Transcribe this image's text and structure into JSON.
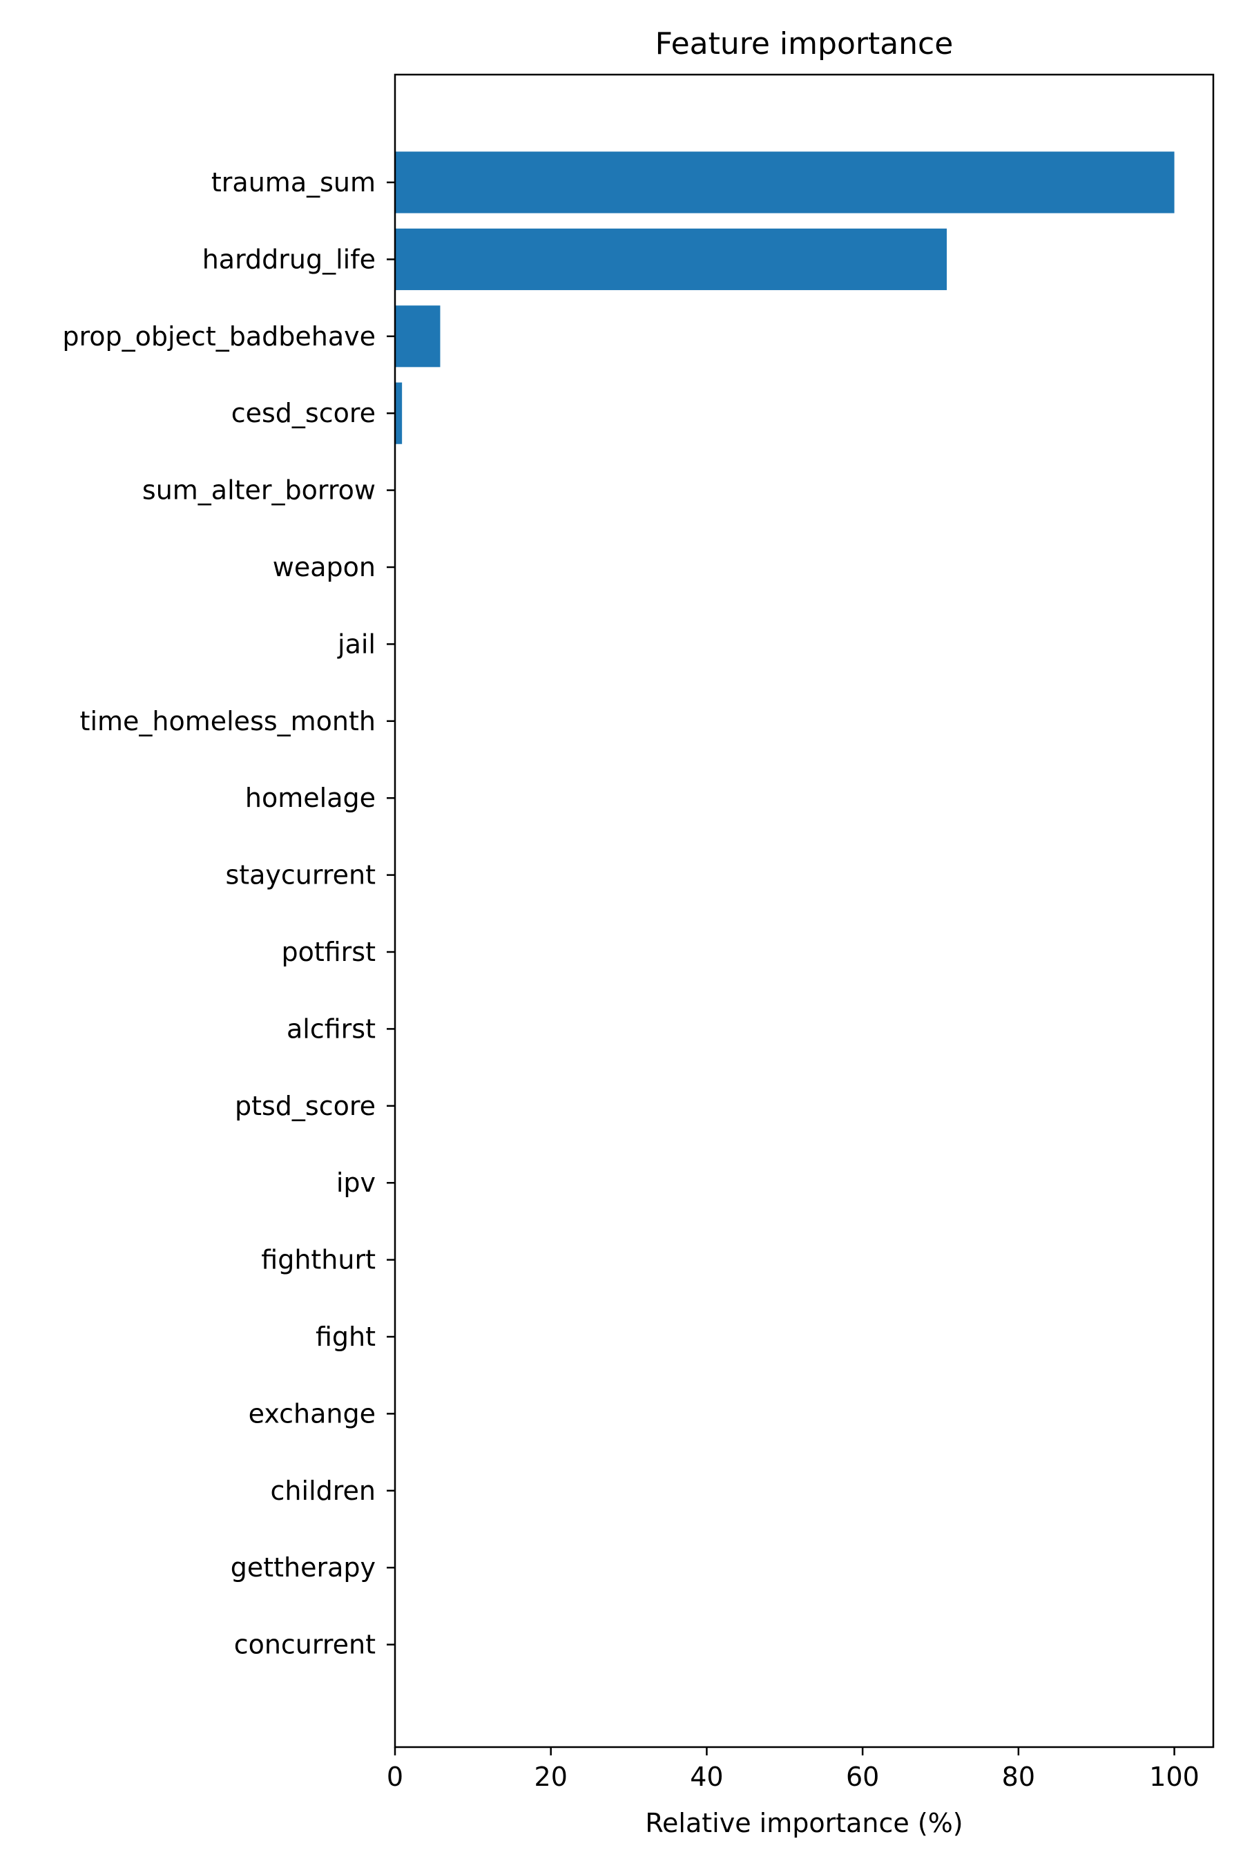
{
  "chart_data": {
    "type": "bar",
    "orientation": "horizontal",
    "title": "Feature importance",
    "xlabel": "Relative importance (%)",
    "ylabel": "",
    "xlim": [
      0,
      105
    ],
    "xticks": [
      0,
      20,
      40,
      60,
      80,
      100
    ],
    "grid": false,
    "legend": "none",
    "bar_color": "#1f77b4",
    "categories": [
      "trauma_sum",
      "harddrug_life",
      "prop_object_badbehave",
      "cesd_score",
      "sum_alter_borrow",
      "weapon",
      "jail",
      "time_homeless_month",
      "homelage",
      "staycurrent",
      "potfirst",
      "alcfirst",
      "ptsd_score",
      "ipv",
      "fighthurt",
      "fight",
      "exchange",
      "children",
      "gettherapy",
      "concurrent"
    ],
    "values": [
      100,
      70.8,
      5.8,
      0.9,
      0,
      0,
      0,
      0,
      0,
      0,
      0,
      0,
      0,
      0,
      0,
      0,
      0,
      0,
      0,
      0
    ]
  }
}
